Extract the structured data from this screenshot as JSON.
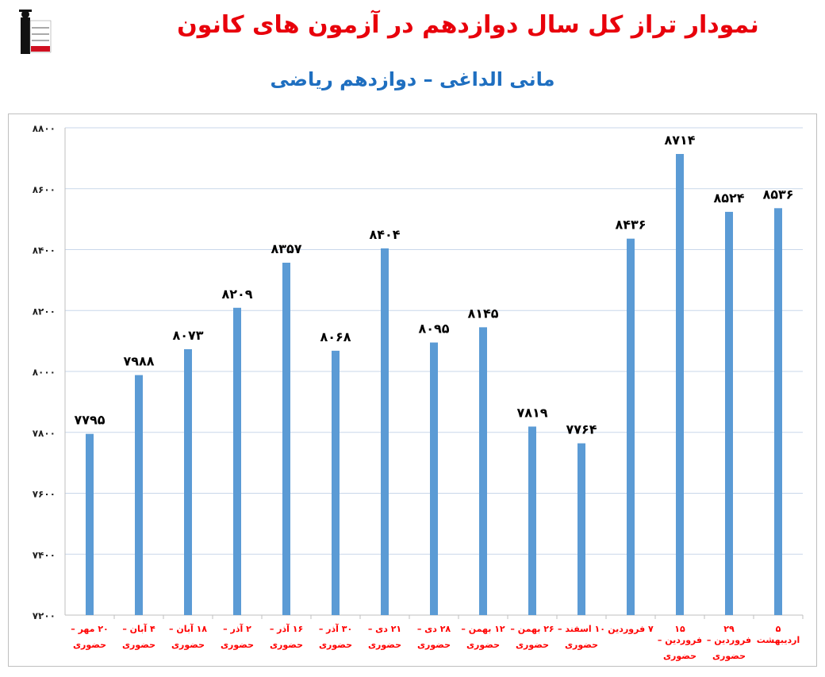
{
  "logo": {
    "text": [
      "کانون",
      "فرهنگی",
      "آموزش",
      "قلم‌چی"
    ]
  },
  "chart_data": {
    "type": "bar",
    "title": "نمودار تراز کل سال دوازدهم در آزمون های کانون",
    "subtitle": "مانی الداغی – دوازدهم ریاضی",
    "categories": [
      [
        "۲۰ مهر –",
        "حضوری"
      ],
      [
        "۴ آبان –",
        "حضوری"
      ],
      [
        "۱۸ آبان –",
        "حضوری"
      ],
      [
        "۲ آذر –",
        "حضوری"
      ],
      [
        "۱۶ آذر –",
        "حضوری"
      ],
      [
        "۳۰ آذر –",
        "حضوری"
      ],
      [
        "۲۱ دی –",
        "حضوری"
      ],
      [
        "۲۸ دی –",
        "حضوری"
      ],
      [
        "۱۲ بهمن –",
        "حضوری"
      ],
      [
        "۲۶ بهمن –",
        "حضوری"
      ],
      [
        "۱۰ اسفند –",
        "حضوری"
      ],
      [
        "۷ فروردین",
        ""
      ],
      [
        "۱۵ فروردین –",
        "حضوری"
      ],
      [
        "۲۹ فروردین –",
        "حضوری"
      ],
      [
        "۵ اردیبهشت",
        ""
      ]
    ],
    "values": [
      7795,
      7988,
      8073,
      8209,
      8357,
      8068,
      8404,
      8095,
      8145,
      7819,
      7764,
      8436,
      8714,
      8524,
      8536
    ],
    "ylim": [
      7200,
      8800
    ],
    "yticks": [
      7200,
      7400,
      7600,
      7800,
      8000,
      8200,
      8400,
      8600,
      8800
    ],
    "grid": true,
    "colors": {
      "bar": "#5b9bd5",
      "label": "#ff0000",
      "title": "#e8000b",
      "subtitle": "#1f6fc0"
    }
  }
}
